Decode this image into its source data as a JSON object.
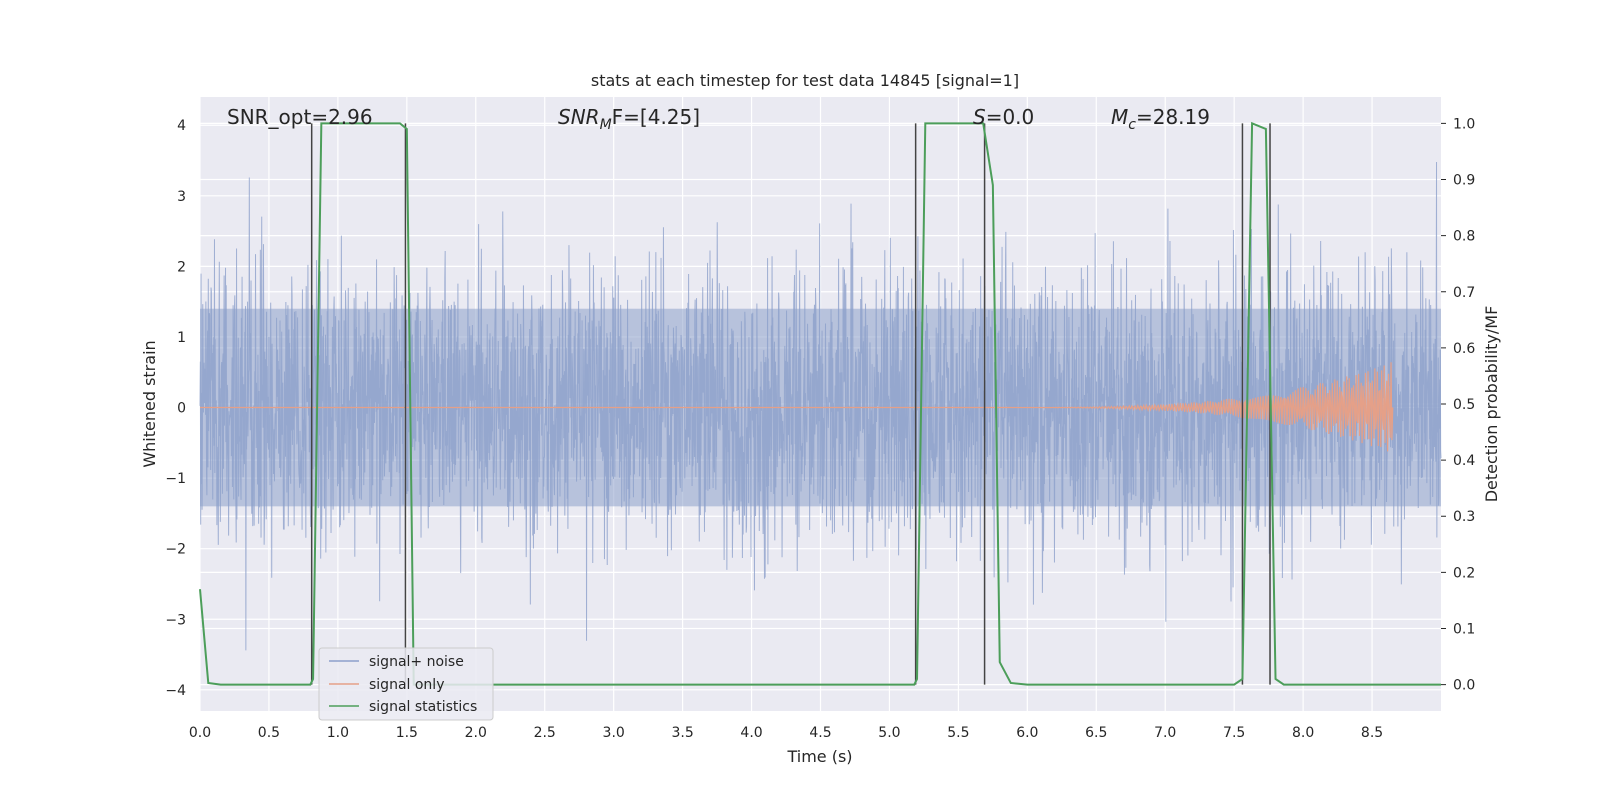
{
  "chart_data": {
    "type": "line",
    "title": "stats at each timestep for test data 14845 [signal=1]",
    "xlabel": "Time (s)",
    "ylabel_left": "Whitened strain",
    "ylabel_right": "Detection probability/MF",
    "xlim": [
      0.0,
      9.0
    ],
    "ylim_left": [
      -4.3,
      4.4
    ],
    "ylim_right": [
      -0.047,
      1.047
    ],
    "grid": true,
    "legend_position": "lower-left",
    "x_ticks": [
      "0.0",
      "0.5",
      "1.0",
      "1.5",
      "2.0",
      "2.5",
      "3.0",
      "3.5",
      "4.0",
      "4.5",
      "5.0",
      "5.5",
      "6.0",
      "6.5",
      "7.0",
      "7.5",
      "8.0",
      "8.5"
    ],
    "y_ticks_left": [
      "−4",
      "−3",
      "−2",
      "−1",
      "0",
      "1",
      "2",
      "3",
      "4"
    ],
    "y_ticks_right": [
      "0.0",
      "0.1",
      "0.2",
      "0.3",
      "0.4",
      "0.5",
      "0.6",
      "0.7",
      "0.8",
      "0.9",
      "1.0"
    ],
    "annotations": {
      "snr_opt": "SNR_opt=2.96",
      "snr_mf_main": "SNR",
      "snr_mf_sub": "M",
      "snr_mf_tail": "F=[4.25]",
      "s_main": "S",
      "s_tail": "=0.0",
      "mc_main": "M",
      "mc_sub": "c",
      "mc_tail": "=28.19"
    },
    "series": [
      {
        "name": "signal+ noise",
        "color": "#8da0cb",
        "axis": "left",
        "description_stats": {
          "typical_abs": 1.6,
          "max_abs": 3.9
        }
      },
      {
        "name": "signal only",
        "color": "#e5a088",
        "axis": "left",
        "chirp": {
          "start_x": 5.7,
          "end_x": 8.65,
          "peak_amplitude": 0.65
        }
      },
      {
        "name": "signal statistics",
        "color": "#4c9e5a",
        "axis": "right",
        "x": [
          0.0,
          0.06,
          0.15,
          0.8,
          0.82,
          0.88,
          1.45,
          1.5,
          1.55,
          5.18,
          5.2,
          5.26,
          5.68,
          5.75,
          5.8,
          5.88,
          6.0,
          7.5,
          7.56,
          7.63,
          7.73,
          7.8,
          7.86,
          8.0,
          9.0
        ],
        "y": [
          0.17,
          0.003,
          0.0,
          0.0,
          0.01,
          1.0,
          1.0,
          0.99,
          0.0,
          0.0,
          0.01,
          1.0,
          1.0,
          0.89,
          0.04,
          0.003,
          0.0,
          0.0,
          0.01,
          1.0,
          0.99,
          0.01,
          0.0,
          0.0,
          0.0
        ]
      }
    ],
    "vertical_lines": [
      0.81,
      1.49,
      5.19,
      5.69,
      7.56,
      7.76
    ]
  }
}
